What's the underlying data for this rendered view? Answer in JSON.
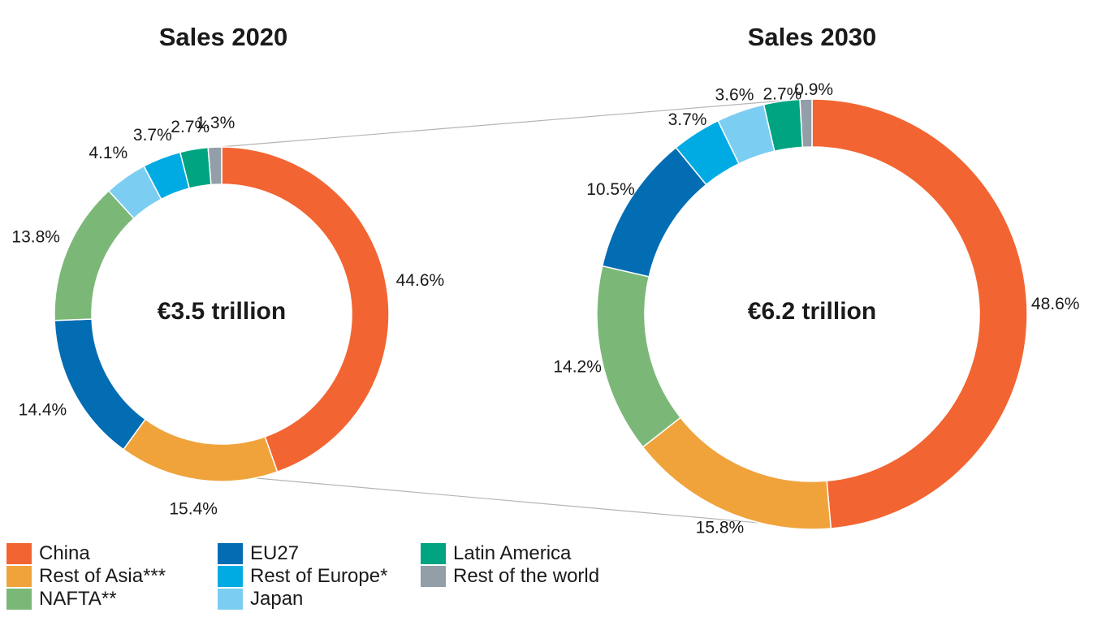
{
  "chart_data": [
    {
      "type": "pie",
      "title": "Sales 2020",
      "center_label": "€3.5 trillion",
      "slices": [
        {
          "name": "China",
          "value": 44.6,
          "label": "44.6%",
          "color": "#f26532"
        },
        {
          "name": "Rest of Asia***",
          "value": 15.4,
          "label": "15.4%",
          "color": "#f0a33b"
        },
        {
          "name": "EU27",
          "value": 14.4,
          "label": "14.4%",
          "color": "#036db4"
        },
        {
          "name": "NAFTA**",
          "value": 13.8,
          "label": "13.8%",
          "color": "#7bb878"
        },
        {
          "name": "Japan",
          "value": 4.1,
          "label": "4.1%",
          "color": "#7ccdf2"
        },
        {
          "name": "Rest of Europe*",
          "value": 3.7,
          "label": "3.7%",
          "color": "#00abe4"
        },
        {
          "name": "Latin America",
          "value": 2.7,
          "label": "2.7%",
          "color": "#00a481"
        },
        {
          "name": "Rest of the world",
          "value": 1.3,
          "label": "1.3%",
          "color": "#939fa8"
        }
      ]
    },
    {
      "type": "pie",
      "title": "Sales 2030",
      "center_label": "€6.2 trillion",
      "slices": [
        {
          "name": "China",
          "value": 48.6,
          "label": "48.6%",
          "color": "#f26532"
        },
        {
          "name": "Rest of Asia***",
          "value": 15.8,
          "label": "15.8%",
          "color": "#f0a33b"
        },
        {
          "name": "NAFTA**",
          "value": 14.2,
          "label": "14.2%",
          "color": "#7bb878"
        },
        {
          "name": "EU27",
          "value": 10.5,
          "label": "10.5%",
          "color": "#036db4"
        },
        {
          "name": "Rest of Europe*",
          "value": 3.7,
          "label": "3.7%",
          "color": "#00abe4"
        },
        {
          "name": "Japan",
          "value": 3.6,
          "label": "3.6%",
          "color": "#7ccdf2"
        },
        {
          "name": "Latin America",
          "value": 2.7,
          "label": "2.7%",
          "color": "#00a481"
        },
        {
          "name": "Rest of the world",
          "value": 0.9,
          "label": "0.9%",
          "color": "#939fa8"
        }
      ]
    }
  ],
  "legend": [
    {
      "label": "China",
      "color": "#f26532"
    },
    {
      "label": "Rest of Asia***",
      "color": "#f0a33b"
    },
    {
      "label": "NAFTA**",
      "color": "#7bb878"
    },
    {
      "label": "EU27",
      "color": "#036db4"
    },
    {
      "label": "Rest of Europe*",
      "color": "#00abe4"
    },
    {
      "label": "Japan",
      "color": "#7ccdf2"
    },
    {
      "label": "Latin America",
      "color": "#00a481"
    },
    {
      "label": "Rest of the world",
      "color": "#939fa8"
    }
  ]
}
